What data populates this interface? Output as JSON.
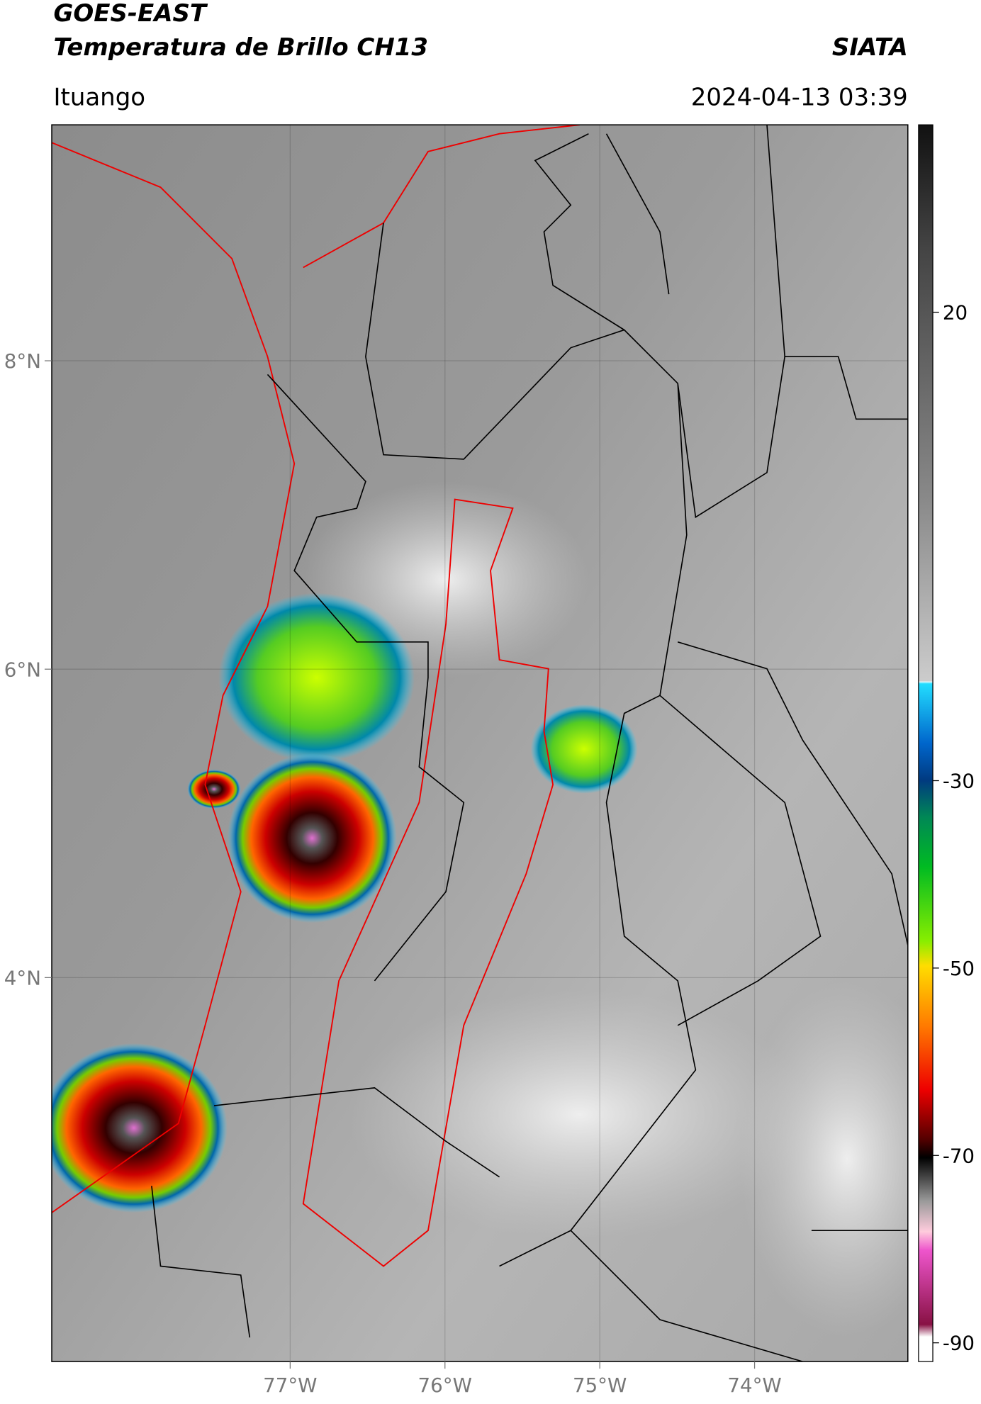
{
  "header": {
    "source": "GOES-EAST",
    "product": "Temperatura de Brillo CH13",
    "brand": "SIATA",
    "location": "Ituango",
    "datetime": "2024-04-13 03:39"
  },
  "map": {
    "lon_range": [
      -78.54,
      -73.01
    ],
    "lat_range": [
      1.51,
      9.53
    ],
    "lon_ticks": [
      {
        "value": -77,
        "label": "77°W"
      },
      {
        "value": -76,
        "label": "76°W"
      },
      {
        "value": -75,
        "label": "75°W"
      },
      {
        "value": -74,
        "label": "74°W"
      }
    ],
    "lat_ticks": [
      {
        "value": 8,
        "label": "8°N"
      },
      {
        "value": 6,
        "label": "6°N"
      },
      {
        "value": 4,
        "label": "4°N"
      }
    ]
  },
  "colorbar": {
    "range": [
      -92,
      40
    ],
    "ticks": [
      20,
      -30,
      -50,
      -70,
      -90
    ]
  }
}
